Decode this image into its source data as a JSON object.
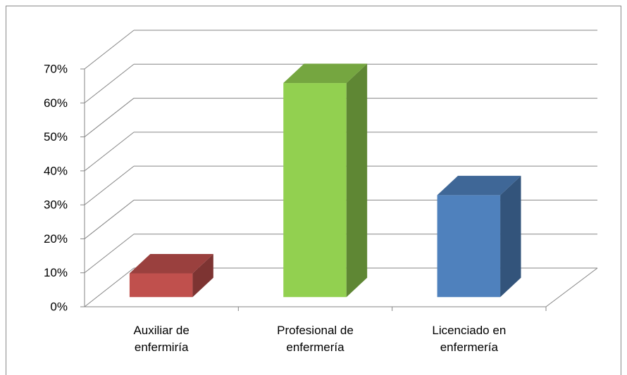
{
  "chart_data": {
    "type": "bar3d",
    "categories": [
      "Auxiliar de enfermiría",
      "Profesional de enfermería",
      "Licenciado en enfermería"
    ],
    "values": [
      7,
      63,
      30
    ],
    "colors": [
      "#c0504d",
      "#92d050",
      "#4f81bd"
    ],
    "ylim": [
      0,
      70
    ],
    "yticks": [
      {
        "value": 0,
        "label": "0%"
      },
      {
        "value": 10,
        "label": "10%"
      },
      {
        "value": 20,
        "label": "20%"
      },
      {
        "value": 30,
        "label": "30%"
      },
      {
        "value": 40,
        "label": "40%"
      },
      {
        "value": 50,
        "label": "50%"
      },
      {
        "value": 60,
        "label": "60%"
      },
      {
        "value": 70,
        "label": "70%"
      }
    ],
    "grid": true
  }
}
